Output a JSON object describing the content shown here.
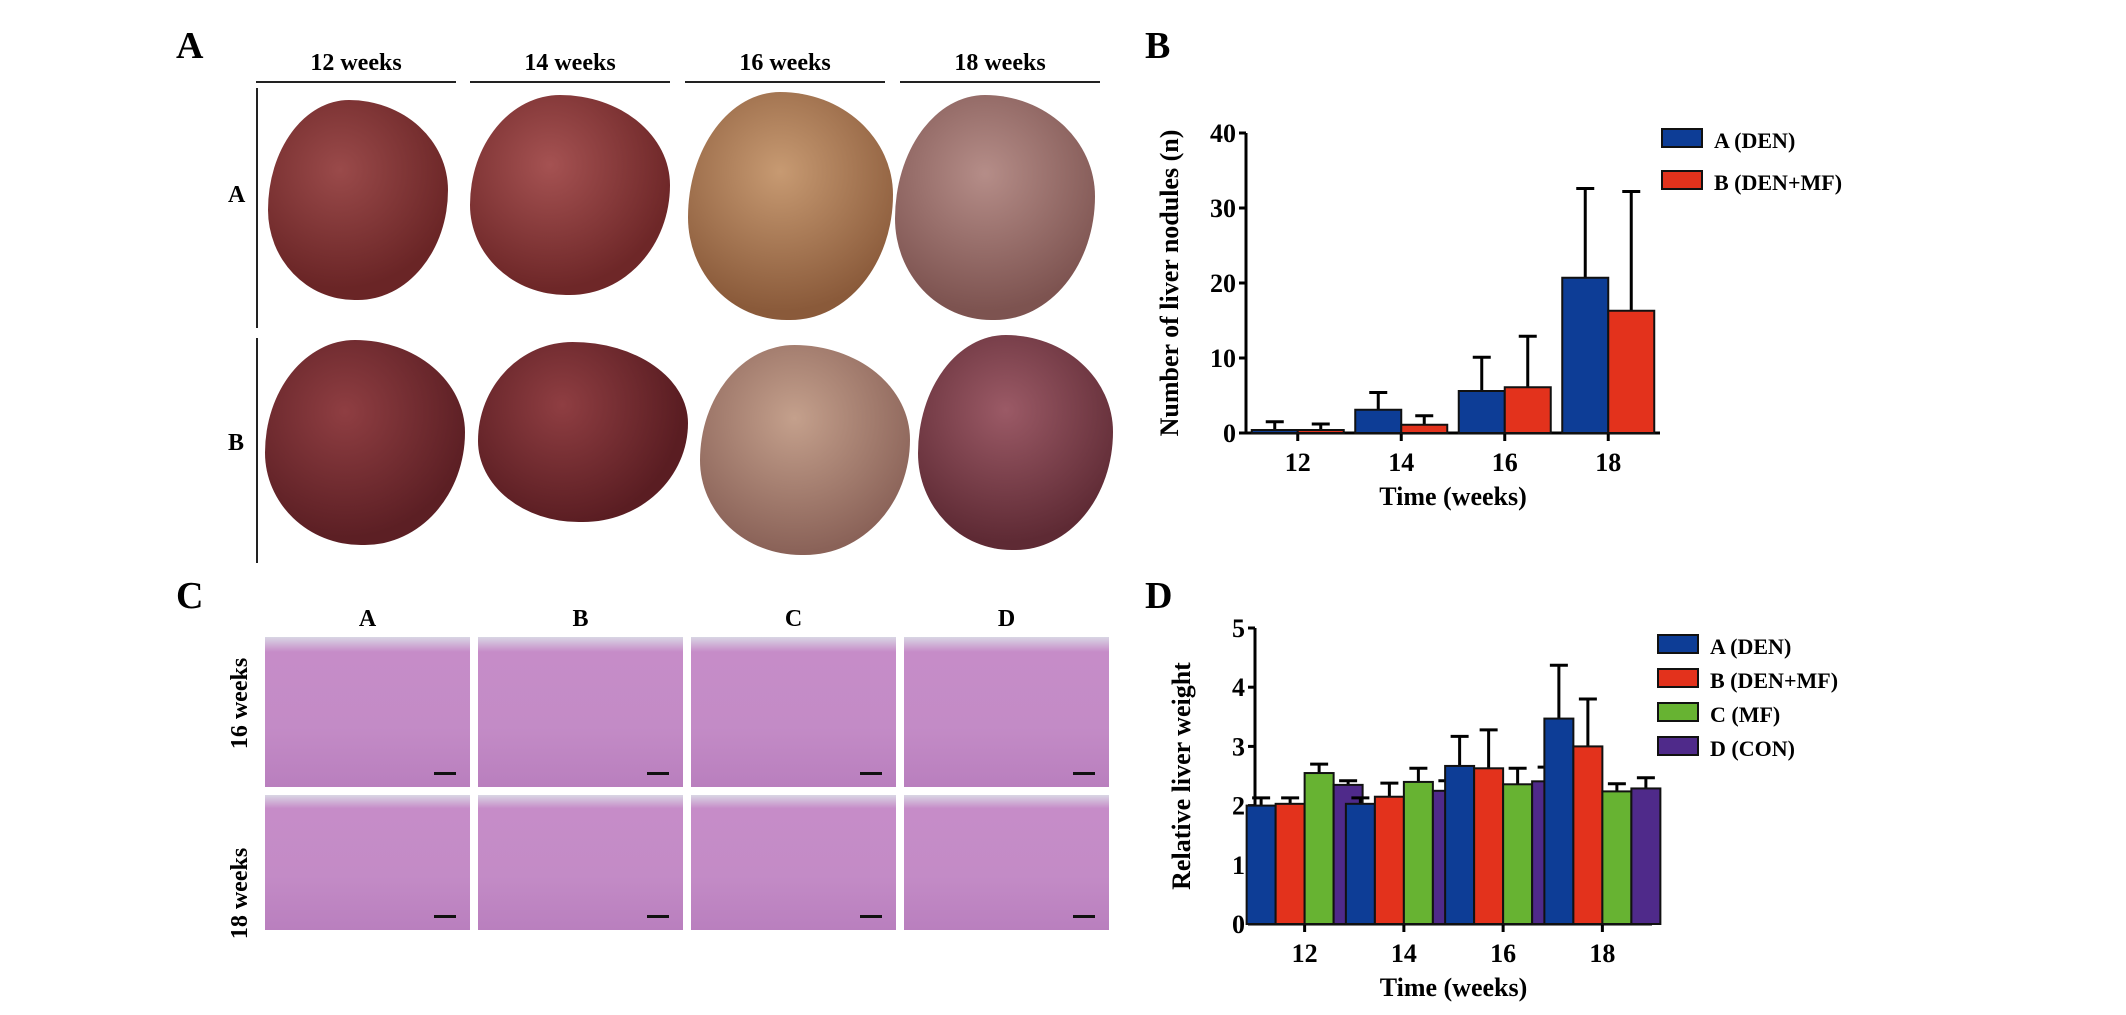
{
  "panels": {
    "a": {
      "label": "A",
      "columns": [
        "12 weeks",
        "14 weeks",
        "16 weeks",
        "18 weeks"
      ],
      "rows": [
        "A",
        "B"
      ]
    },
    "b": {
      "label": "B"
    },
    "c": {
      "label": "C",
      "columns": [
        "A",
        "B",
        "C",
        "D"
      ],
      "rows": [
        "16 weeks",
        "18 weeks"
      ]
    },
    "d": {
      "label": "D"
    }
  },
  "colors": {
    "A": "#0d3d96",
    "B": "#e3321c",
    "C": "#67b332",
    "D": "#4f2a8a"
  },
  "chart_data": [
    {
      "type": "bar",
      "panel": "B",
      "title": "",
      "xlabel": "Time (weeks)",
      "ylabel": "Number of liver nodules (n)",
      "categories": [
        "12",
        "14",
        "16",
        "18"
      ],
      "ylim": [
        0,
        40
      ],
      "yticks": [
        "0",
        "10",
        "20",
        "30",
        "40"
      ],
      "legend_position": "top-right",
      "series": [
        {
          "name": "A (DEN)",
          "values": [
            0.4,
            3.1,
            5.6,
            20.7
          ],
          "error_top": [
            1.5,
            5.4,
            10.1,
            32.6
          ]
        },
        {
          "name": "B (DEN+MF)",
          "values": [
            0.4,
            1.1,
            6.1,
            16.3
          ],
          "error_top": [
            1.2,
            2.3,
            12.9,
            32.2
          ]
        }
      ]
    },
    {
      "type": "bar",
      "panel": "D",
      "title": "",
      "xlabel": "Time (weeks)",
      "ylabel": "Relative liver weight",
      "categories": [
        "12",
        "14",
        "16",
        "18"
      ],
      "ylim": [
        0,
        5
      ],
      "yticks": [
        "0",
        "1",
        "2",
        "3",
        "4",
        "5"
      ],
      "legend_position": "top-right",
      "series": [
        {
          "name": "A (DEN)",
          "values": [
            2.0,
            2.03,
            2.67,
            3.47
          ],
          "error_top": [
            2.13,
            2.13,
            3.17,
            4.37
          ]
        },
        {
          "name": "B (DEN+MF)",
          "values": [
            2.03,
            2.15,
            2.63,
            3.0
          ],
          "error_top": [
            2.13,
            2.38,
            3.28,
            3.8
          ]
        },
        {
          "name": "C (MF)",
          "values": [
            2.55,
            2.4,
            2.36,
            2.24
          ],
          "error_top": [
            2.7,
            2.63,
            2.63,
            2.37
          ]
        },
        {
          "name": "D (CON)",
          "values": [
            2.35,
            2.25,
            2.41,
            2.29
          ],
          "error_top": [
            2.42,
            2.42,
            2.65,
            2.47
          ]
        }
      ]
    }
  ]
}
